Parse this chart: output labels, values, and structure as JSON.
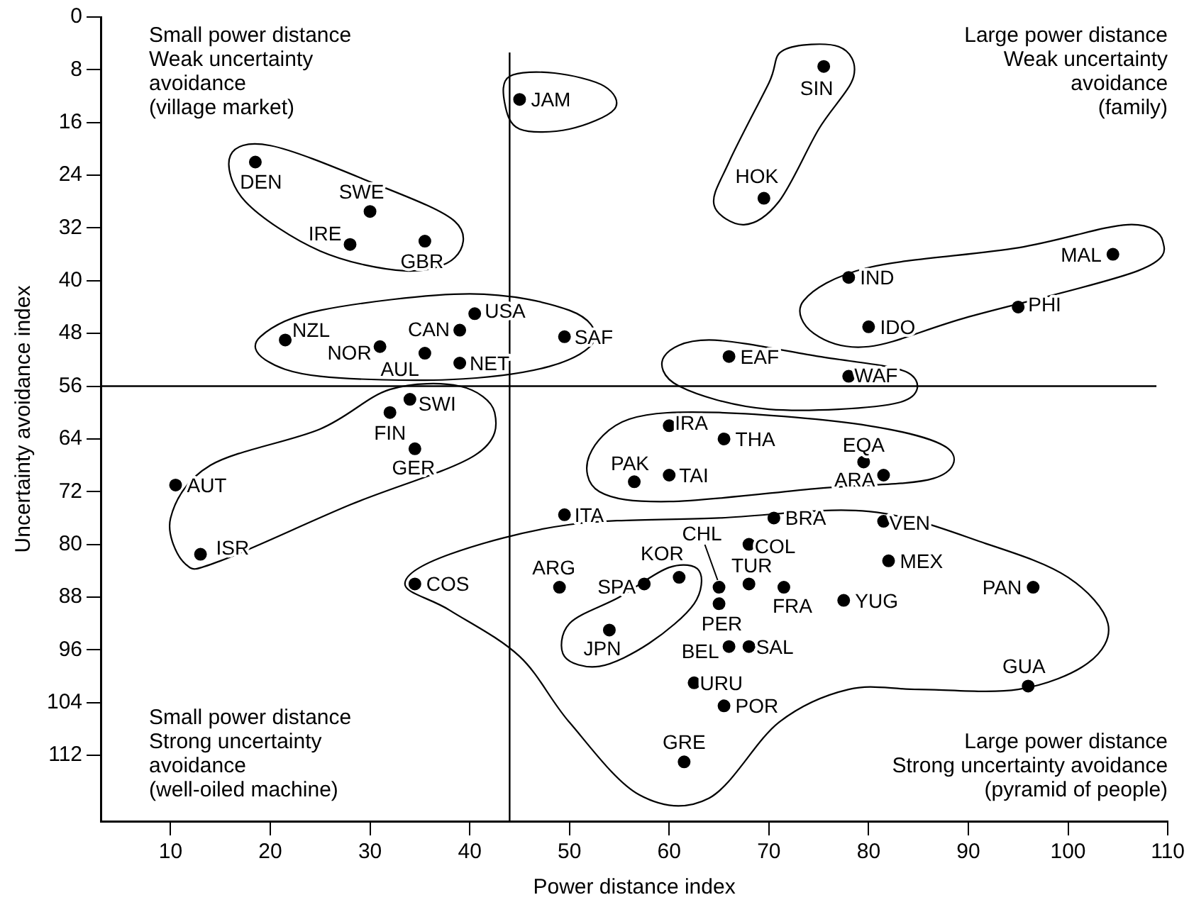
{
  "chart_data": {
    "type": "scatter",
    "xlabel": "Power distance index",
    "ylabel": "Uncertainty avoidance index",
    "xlim": [
      3,
      110
    ],
    "ylim": [
      122,
      0
    ],
    "xticks": [
      10,
      20,
      30,
      40,
      50,
      60,
      70,
      80,
      90,
      100,
      110
    ],
    "yticks": [
      0,
      8,
      16,
      24,
      32,
      40,
      48,
      56,
      64,
      72,
      80,
      88,
      96,
      104,
      112
    ],
    "grid": false,
    "legend": false,
    "marker": "circle",
    "ref_lines": [
      {
        "axis": "x",
        "value": 44
      },
      {
        "axis": "y",
        "value": 56
      }
    ],
    "annotations": [
      "Small power distance\nWeak uncertainty\navoidance\n(village market)",
      "Large power distance\nWeak uncertainty\navoidance\n(family)",
      "Small power distance\nStrong uncertainty\navoidance\n(well-oiled machine)",
      "Large power distance\nStrong uncertainty avoidance\n(pyramid of people)"
    ],
    "series": [
      {
        "name": "JAM",
        "color": "#000000",
        "x": [
          45
        ],
        "values": [
          12.5
        ]
      },
      {
        "name": "SIN",
        "color": "#000000",
        "x": [
          75.5
        ],
        "values": [
          7.5
        ]
      },
      {
        "name": "HOK",
        "color": "#000000",
        "x": [
          69.5
        ],
        "values": [
          27.5
        ]
      },
      {
        "name": "DEN",
        "color": "#000000",
        "x": [
          18.5
        ],
        "values": [
          22
        ]
      },
      {
        "name": "SWE",
        "color": "#000000",
        "x": [
          30
        ],
        "values": [
          29.5
        ]
      },
      {
        "name": "IRE",
        "color": "#000000",
        "x": [
          28
        ],
        "values": [
          34.5
        ]
      },
      {
        "name": "GBR",
        "color": "#000000",
        "x": [
          35.5
        ],
        "values": [
          34
        ]
      },
      {
        "name": "NZL",
        "color": "#000000",
        "x": [
          21.5
        ],
        "values": [
          49
        ]
      },
      {
        "name": "NOR",
        "color": "#000000",
        "x": [
          31
        ],
        "values": [
          50
        ]
      },
      {
        "name": "AUL",
        "color": "#000000",
        "x": [
          35.5
        ],
        "values": [
          51
        ]
      },
      {
        "name": "CAN",
        "color": "#000000",
        "x": [
          39
        ],
        "values": [
          47.5
        ]
      },
      {
        "name": "USA",
        "color": "#000000",
        "x": [
          40.5
        ],
        "values": [
          45
        ]
      },
      {
        "name": "NET",
        "color": "#000000",
        "x": [
          39
        ],
        "values": [
          52.5
        ]
      },
      {
        "name": "SAF",
        "color": "#000000",
        "x": [
          49.5
        ],
        "values": [
          48.5
        ]
      },
      {
        "name": "IND",
        "color": "#000000",
        "x": [
          78
        ],
        "values": [
          39.5
        ]
      },
      {
        "name": "IDO",
        "color": "#000000",
        "x": [
          80
        ],
        "values": [
          47
        ]
      },
      {
        "name": "PHI",
        "color": "#000000",
        "x": [
          95
        ],
        "values": [
          44
        ]
      },
      {
        "name": "MAL",
        "color": "#000000",
        "x": [
          104.5
        ],
        "values": [
          36
        ]
      },
      {
        "name": "EAF",
        "color": "#000000",
        "x": [
          66
        ],
        "values": [
          51.5
        ]
      },
      {
        "name": "WAF",
        "color": "#000000",
        "x": [
          78
        ],
        "values": [
          54.5
        ]
      },
      {
        "name": "SWI",
        "color": "#000000",
        "x": [
          34
        ],
        "values": [
          58
        ]
      },
      {
        "name": "FIN",
        "color": "#000000",
        "x": [
          32
        ],
        "values": [
          60
        ]
      },
      {
        "name": "GER",
        "color": "#000000",
        "x": [
          34.5
        ],
        "values": [
          65.5
        ]
      },
      {
        "name": "AUT",
        "color": "#000000",
        "x": [
          10.5
        ],
        "values": [
          71
        ]
      },
      {
        "name": "ISR",
        "color": "#000000",
        "x": [
          13
        ],
        "values": [
          81.5
        ]
      },
      {
        "name": "IRA",
        "color": "#000000",
        "x": [
          60
        ],
        "values": [
          62
        ]
      },
      {
        "name": "THA",
        "color": "#000000",
        "x": [
          65.5
        ],
        "values": [
          64
        ]
      },
      {
        "name": "EQA",
        "color": "#000000",
        "x": [
          79.5
        ],
        "values": [
          67.5
        ]
      },
      {
        "name": "ARA",
        "color": "#000000",
        "x": [
          81.5
        ],
        "values": [
          69.5
        ]
      },
      {
        "name": "PAK",
        "color": "#000000",
        "x": [
          56.5
        ],
        "values": [
          70.5
        ]
      },
      {
        "name": "TAI",
        "color": "#000000",
        "x": [
          60
        ],
        "values": [
          69.5
        ]
      },
      {
        "name": "ITA",
        "color": "#000000",
        "x": [
          49.5
        ],
        "values": [
          75.5
        ]
      },
      {
        "name": "BRA",
        "color": "#000000",
        "x": [
          70.5
        ],
        "values": [
          76
        ]
      },
      {
        "name": "VEN",
        "color": "#000000",
        "x": [
          81.5
        ],
        "values": [
          76.5
        ]
      },
      {
        "name": "COL",
        "color": "#000000",
        "x": [
          68
        ],
        "values": [
          80
        ]
      },
      {
        "name": "MEX",
        "color": "#000000",
        "x": [
          82
        ],
        "values": [
          82.5
        ]
      },
      {
        "name": "ARG",
        "color": "#000000",
        "x": [
          49
        ],
        "values": [
          86.5
        ]
      },
      {
        "name": "KOR",
        "color": "#000000",
        "x": [
          61
        ],
        "values": [
          85
        ]
      },
      {
        "name": "SPA",
        "color": "#000000",
        "x": [
          57.5
        ],
        "values": [
          86
        ]
      },
      {
        "name": "CHL",
        "color": "#000000",
        "x": [
          65
        ],
        "values": [
          86.5
        ]
      },
      {
        "name": "TUR",
        "color": "#000000",
        "x": [
          68
        ],
        "values": [
          86
        ]
      },
      {
        "name": "FRA",
        "color": "#000000",
        "x": [
          71.5
        ],
        "values": [
          86.5
        ]
      },
      {
        "name": "PER",
        "color": "#000000",
        "x": [
          65
        ],
        "values": [
          89
        ]
      },
      {
        "name": "YUG",
        "color": "#000000",
        "x": [
          77.5
        ],
        "values": [
          88.5
        ]
      },
      {
        "name": "PAN",
        "color": "#000000",
        "x": [
          96.5
        ],
        "values": [
          86.5
        ]
      },
      {
        "name": "COS",
        "color": "#000000",
        "x": [
          34.5
        ],
        "values": [
          86
        ]
      },
      {
        "name": "JPN",
        "color": "#000000",
        "x": [
          54
        ],
        "values": [
          93
        ]
      },
      {
        "name": "BEL",
        "color": "#000000",
        "x": [
          66
        ],
        "values": [
          95.5
        ]
      },
      {
        "name": "SAL",
        "color": "#000000",
        "x": [
          68
        ],
        "values": [
          95.5
        ]
      },
      {
        "name": "GUA",
        "color": "#000000",
        "x": [
          96
        ],
        "values": [
          101.5
        ]
      },
      {
        "name": "URU",
        "color": "#000000",
        "x": [
          62.5
        ],
        "values": [
          101
        ]
      },
      {
        "name": "POR",
        "color": "#000000",
        "x": [
          65.5
        ],
        "values": [
          104.5
        ]
      },
      {
        "name": "GRE",
        "color": "#000000",
        "x": [
          61.5
        ],
        "values": [
          113
        ]
      }
    ]
  }
}
